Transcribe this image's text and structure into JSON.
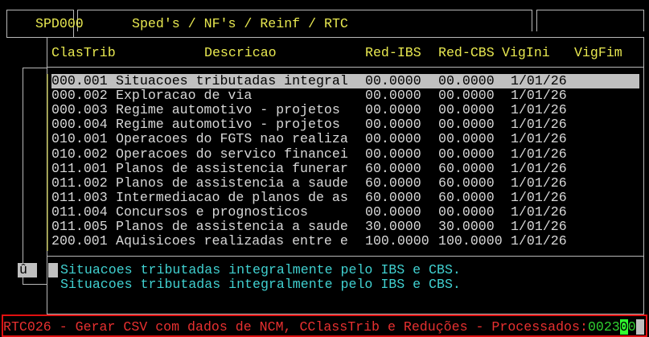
{
  "header": {
    "program_code": "SPD000",
    "module_path": "Sped's / NF's / Reinf / RTC",
    "right_box": ""
  },
  "table": {
    "columns": [
      "ClasTrib",
      "Descricao",
      "Red-IBS",
      "Red-CBS",
      "VigIni",
      "VigFim"
    ],
    "selected_index": 0,
    "rows": [
      {
        "clastrib": "000.001",
        "descricao": "Situacoes tributadas integral",
        "red_ibs": "00.0000",
        "red_cbs": "00.0000",
        "vigini": "1/01/26",
        "vigfim": ""
      },
      {
        "clastrib": "000.002",
        "descricao": "Exploracao de via",
        "red_ibs": "00.0000",
        "red_cbs": "00.0000",
        "vigini": "1/01/26",
        "vigfim": ""
      },
      {
        "clastrib": "000.003",
        "descricao": "Regime automotivo - projetos",
        "red_ibs": "00.0000",
        "red_cbs": "00.0000",
        "vigini": "1/01/26",
        "vigfim": ""
      },
      {
        "clastrib": "000.004",
        "descricao": "Regime automotivo - projetos",
        "red_ibs": "00.0000",
        "red_cbs": "00.0000",
        "vigini": "1/01/26",
        "vigfim": ""
      },
      {
        "clastrib": "010.001",
        "descricao": "Operacoes do FGTS nao realiza",
        "red_ibs": "00.0000",
        "red_cbs": "00.0000",
        "vigini": "1/01/26",
        "vigfim": ""
      },
      {
        "clastrib": "010.002",
        "descricao": "Operacoes do servico financei",
        "red_ibs": "00.0000",
        "red_cbs": "00.0000",
        "vigini": "1/01/26",
        "vigfim": ""
      },
      {
        "clastrib": "011.001",
        "descricao": "Planos de assistencia funerar",
        "red_ibs": "60.0000",
        "red_cbs": "60.0000",
        "vigini": "1/01/26",
        "vigfim": ""
      },
      {
        "clastrib": "011.002",
        "descricao": "Planos de assistencia a saude",
        "red_ibs": "60.0000",
        "red_cbs": "60.0000",
        "vigini": "1/01/26",
        "vigfim": ""
      },
      {
        "clastrib": "011.003",
        "descricao": "Intermediacao de planos de as",
        "red_ibs": "60.0000",
        "red_cbs": "60.0000",
        "vigini": "1/01/26",
        "vigfim": ""
      },
      {
        "clastrib": "011.004",
        "descricao": "Concursos e prognosticos",
        "red_ibs": "00.0000",
        "red_cbs": "00.0000",
        "vigini": "1/01/26",
        "vigfim": ""
      },
      {
        "clastrib": "011.005",
        "descricao": "Planos de assistencia a saude",
        "red_ibs": "30.0000",
        "red_cbs": "30.0000",
        "vigini": "1/01/26",
        "vigfim": ""
      },
      {
        "clastrib": "200.001",
        "descricao": "Aquisicoes realizadas entre e",
        "red_ibs": "100.0000",
        "red_cbs": "100.0000",
        "vigini": "1/01/26",
        "vigfim": ""
      }
    ]
  },
  "detail": {
    "marker": "û",
    "line1": "Situacoes tributadas integralmente pelo IBS e CBS.",
    "line2": "Situacoes tributadas integralmente pelo IBS e CBS."
  },
  "status": {
    "message": "RTC026 - Gerar CSV com dados de NCM, CClassTrib e Reduções - Processados:",
    "count_prefix": "0023",
    "count_cursor": "0",
    "count_suffix": "0"
  },
  "colors": {
    "header_text": "#e8e850",
    "row_text": "#d8d8d8",
    "detail_text": "#40d0d0",
    "status_text": "#e83030",
    "status_border": "#e01010",
    "count_text": "#30d030"
  }
}
